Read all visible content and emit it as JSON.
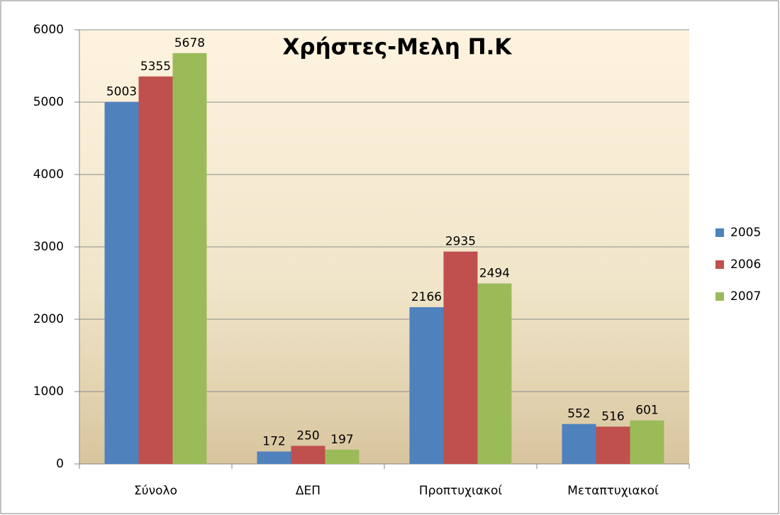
{
  "chart_data": {
    "type": "bar",
    "title": "Χρήστες-Μελη Π.Κ",
    "categories": [
      "Σύνολο",
      "ΔΕΠ",
      "Προπτυχιακοί",
      "Μεταπτυχιακοί"
    ],
    "series": [
      {
        "name": "2005",
        "color": "#4f81bd",
        "values": [
          5003,
          172,
          2166,
          552
        ]
      },
      {
        "name": "2006",
        "color": "#c0504d",
        "values": [
          5355,
          250,
          2935,
          516
        ]
      },
      {
        "name": "2007",
        "color": "#9bbb59",
        "values": [
          5678,
          197,
          2494,
          601
        ]
      }
    ],
    "ylim": [
      0,
      6000
    ],
    "yticks": [
      0,
      1000,
      2000,
      3000,
      4000,
      5000,
      6000
    ],
    "grid": true,
    "legend": "right",
    "data_labels": true
  }
}
